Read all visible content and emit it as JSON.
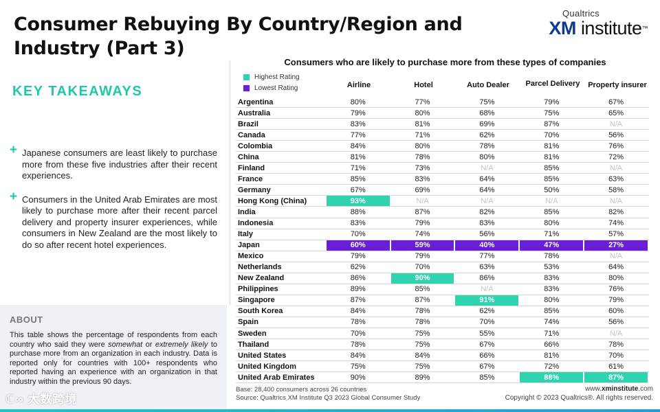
{
  "title": "Consumer Rebuying By Country/Region and Industry (Part 3)",
  "logo": {
    "top": "Qualtrics",
    "xm": "XM",
    "institute": "institute",
    "tm": "™"
  },
  "takeaways": {
    "heading": "KEY TAKEAWAYS",
    "bullets": [
      "Japanese consumers are least likely to purchase more from these five industries after their recent experiences.",
      "Consumers in the United Arab Emirates are most likely to purchase more after their recent parcel delivery and property insurer experiences, while consumers in New Zealand are the most likely to do so after recent hotel experiences."
    ]
  },
  "about": {
    "heading": "ABOUT",
    "text_1": "This table shows the percentage of respondents from each country who said they were ",
    "em_1": "somewhat",
    "text_2": " or ",
    "em_2": "extremely likely",
    "text_3": " to purchase more from an organization in each industry. Data is reported only for countries with 100+ respondents who reported having an experience with an organization in that industry within the previous 90 days."
  },
  "watermark": "ℂ∞ 大数跨境",
  "table": {
    "title": "Consumers who are likely to purchase more from these types of companies",
    "legend": {
      "high": "Highest Rating",
      "low": "Lowest Rating"
    },
    "columns": [
      "Airline",
      "Hotel",
      "Auto Dealer",
      "Parcel Delivery",
      "Property insurer"
    ],
    "rows": [
      {
        "country": "Argentina",
        "values": [
          "80%",
          "77%",
          "75%",
          "79%",
          "67%"
        ]
      },
      {
        "country": "Australia",
        "values": [
          "79%",
          "80%",
          "68%",
          "75%",
          "65%"
        ]
      },
      {
        "country": "Brazil",
        "values": [
          "83%",
          "81%",
          "69%",
          "87%",
          "N/A"
        ]
      },
      {
        "country": "Canada",
        "values": [
          "77%",
          "71%",
          "62%",
          "70%",
          "56%"
        ]
      },
      {
        "country": "Colombia",
        "values": [
          "84%",
          "80%",
          "78%",
          "81%",
          "76%"
        ]
      },
      {
        "country": "China",
        "values": [
          "81%",
          "78%",
          "80%",
          "81%",
          "72%"
        ]
      },
      {
        "country": "Finland",
        "values": [
          "71%",
          "73%",
          "N/A",
          "85%",
          "N/A"
        ]
      },
      {
        "country": "France",
        "values": [
          "85%",
          "83%",
          "64%",
          "85%",
          "63%"
        ]
      },
      {
        "country": "Germany",
        "values": [
          "67%",
          "69%",
          "64%",
          "50%",
          "58%"
        ]
      },
      {
        "country": "Hong Kong (China)",
        "values": [
          "93%",
          "N/A",
          "N/A",
          "N/A",
          "N/A"
        ],
        "high": [
          0
        ]
      },
      {
        "country": "India",
        "values": [
          "88%",
          "87%",
          "82%",
          "85%",
          "82%"
        ]
      },
      {
        "country": "Indonesia",
        "values": [
          "83%",
          "79%",
          "83%",
          "80%",
          "74%"
        ]
      },
      {
        "country": "Italy",
        "values": [
          "70%",
          "74%",
          "56%",
          "71%",
          "57%"
        ]
      },
      {
        "country": "Japan",
        "values": [
          "60%",
          "59%",
          "40%",
          "47%",
          "27%"
        ],
        "low": [
          0,
          1,
          2,
          3,
          4
        ]
      },
      {
        "country": "Mexico",
        "values": [
          "79%",
          "79%",
          "77%",
          "78%",
          "N/A"
        ]
      },
      {
        "country": "Netherlands",
        "values": [
          "62%",
          "70%",
          "63%",
          "53%",
          "64%"
        ]
      },
      {
        "country": "New Zealand",
        "values": [
          "86%",
          "90%",
          "86%",
          "83%",
          "80%"
        ],
        "high": [
          1
        ]
      },
      {
        "country": "Philippines",
        "values": [
          "89%",
          "85%",
          "N/A",
          "83%",
          "76%"
        ]
      },
      {
        "country": "Singapore",
        "values": [
          "87%",
          "87%",
          "91%",
          "80%",
          "79%"
        ],
        "high": [
          2
        ]
      },
      {
        "country": "South Korea",
        "values": [
          "84%",
          "78%",
          "62%",
          "85%",
          "60%"
        ]
      },
      {
        "country": "Spain",
        "values": [
          "78%",
          "78%",
          "70%",
          "74%",
          "56%"
        ]
      },
      {
        "country": "Sweden",
        "values": [
          "70%",
          "75%",
          "55%",
          "71%",
          "N/A"
        ]
      },
      {
        "country": "Thailand",
        "values": [
          "78%",
          "75%",
          "67%",
          "66%",
          "78%"
        ]
      },
      {
        "country": "United States",
        "values": [
          "84%",
          "84%",
          "66%",
          "81%",
          "70%"
        ]
      },
      {
        "country": "United Kingdom",
        "values": [
          "75%",
          "75%",
          "67%",
          "72%",
          "61%"
        ]
      },
      {
        "country": "United Arab Emirates",
        "values": [
          "90%",
          "89%",
          "85%",
          "88%",
          "87%"
        ],
        "high": [
          3,
          4
        ]
      }
    ]
  },
  "footer": {
    "base": "Base: 28,400 consumers across 26 countries",
    "source": "Source: Qualtrics XM Institute Q3 2023 Global Consumer Study",
    "site_prefix": "www.",
    "site_bold": "xminstitute",
    "site_suffix": ".com",
    "copyright": "Copyright © 2023 Qualtrics®. All rights reserved."
  },
  "colors": {
    "high": "#2fd3b0",
    "low": "#6a1fd6",
    "accent": "#20c9a6",
    "na": "#c4c4c4"
  }
}
